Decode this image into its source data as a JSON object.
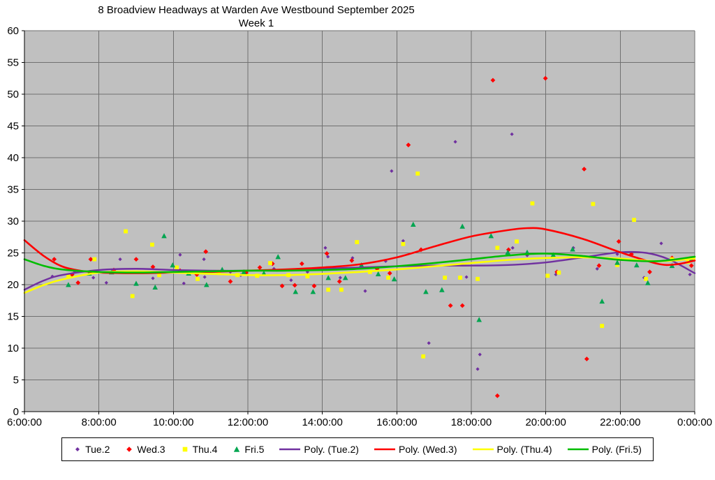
{
  "chart_data": {
    "type": "scatter",
    "title": "8 Broadview Headways at Warden Ave Westbound September 2025",
    "subtitle": "Week 1",
    "plot_bg": "#c0c0c0",
    "grid_color": "#707070",
    "axis_color": "#000000",
    "legend": {
      "position": "bottom",
      "border_color": "#000000",
      "bg": "#ffffff"
    },
    "x_axis": {
      "range_hours": [
        6,
        24
      ],
      "tick_hours": [
        6,
        8,
        10,
        12,
        14,
        16,
        18,
        20,
        22,
        24
      ],
      "tick_labels": [
        "6:00:00",
        "8:00:00",
        "10:00:00",
        "12:00:00",
        "14:00:00",
        "16:00:00",
        "18:00:00",
        "20:00:00",
        "22:00:00",
        "0:00:00"
      ]
    },
    "y_axis": {
      "range": [
        0,
        60
      ],
      "tick_values": [
        0,
        5,
        10,
        15,
        20,
        25,
        30,
        35,
        40,
        45,
        50,
        55,
        60
      ]
    },
    "series": [
      {
        "name": "Tue.2",
        "marker": "diamond",
        "marker_size": 2.6,
        "color": "#7030A0",
        "points": [
          [
            6.75,
            21.3
          ],
          [
            7.35,
            22.0
          ],
          [
            7.85,
            21.1
          ],
          [
            8.2,
            20.3
          ],
          [
            8.57,
            24.0
          ],
          [
            9.0,
            20.1
          ],
          [
            9.45,
            21.0
          ],
          [
            10.18,
            24.7
          ],
          [
            10.28,
            20.2
          ],
          [
            10.82,
            24.0
          ],
          [
            10.84,
            21.2
          ],
          [
            11.53,
            22.0
          ],
          [
            11.81,
            21.5
          ],
          [
            12.7,
            22.5
          ],
          [
            13.16,
            20.7
          ],
          [
            13.6,
            22.0
          ],
          [
            14.08,
            25.8
          ],
          [
            14.15,
            24.4
          ],
          [
            14.48,
            21.1
          ],
          [
            14.81,
            24.2
          ],
          [
            15.15,
            19.0
          ],
          [
            15.7,
            23.7
          ],
          [
            15.86,
            37.9
          ],
          [
            16.17,
            26.9
          ],
          [
            16.86,
            10.8
          ],
          [
            17.57,
            42.5
          ],
          [
            17.87,
            21.2
          ],
          [
            18.17,
            6.7
          ],
          [
            18.23,
            9.0
          ],
          [
            19.09,
            43.7
          ],
          [
            19.11,
            25.8
          ],
          [
            19.5,
            24.6
          ],
          [
            20.27,
            21.6
          ],
          [
            20.74,
            25.8
          ],
          [
            21.38,
            22.5
          ],
          [
            21.92,
            24.8
          ],
          [
            22.64,
            21.1
          ],
          [
            23.1,
            26.5
          ],
          [
            23.87,
            21.6
          ]
        ]
      },
      {
        "name": "Wed.3",
        "marker": "diamond",
        "marker_size": 3.4,
        "color": "#FF0000",
        "points": [
          [
            6.8,
            24.0
          ],
          [
            7.28,
            21.6
          ],
          [
            7.44,
            20.3
          ],
          [
            7.78,
            24.0
          ],
          [
            8.4,
            22.3
          ],
          [
            9.0,
            24.0
          ],
          [
            9.45,
            22.8
          ],
          [
            10.18,
            22.2
          ],
          [
            10.63,
            21.6
          ],
          [
            10.87,
            25.2
          ],
          [
            11.53,
            20.5
          ],
          [
            11.95,
            21.9
          ],
          [
            12.32,
            22.7
          ],
          [
            12.66,
            23.3
          ],
          [
            12.92,
            19.8
          ],
          [
            13.26,
            19.9
          ],
          [
            13.45,
            23.3
          ],
          [
            13.78,
            19.8
          ],
          [
            14.12,
            24.9
          ],
          [
            14.46,
            20.5
          ],
          [
            14.79,
            23.8
          ],
          [
            15.47,
            22.5
          ],
          [
            15.81,
            21.8
          ],
          [
            16.31,
            42.0
          ],
          [
            16.65,
            25.5
          ],
          [
            17.44,
            16.7
          ],
          [
            17.76,
            16.7
          ],
          [
            18.58,
            52.2
          ],
          [
            18.7,
            2.5
          ],
          [
            19.0,
            25.5
          ],
          [
            19.99,
            52.5
          ],
          [
            20.3,
            22.0
          ],
          [
            21.03,
            38.2
          ],
          [
            21.1,
            8.3
          ],
          [
            21.43,
            23.0
          ],
          [
            21.96,
            26.8
          ],
          [
            22.3,
            24.8
          ],
          [
            22.79,
            22.0
          ],
          [
            23.39,
            24.2
          ],
          [
            23.91,
            23.0
          ]
        ]
      },
      {
        "name": "Thu.4",
        "marker": "square",
        "marker_size": 2.9,
        "color": "#FFFF00",
        "points": [
          [
            7.18,
            21.4
          ],
          [
            7.88,
            24.0
          ],
          [
            8.72,
            28.4
          ],
          [
            8.9,
            18.2
          ],
          [
            9.43,
            26.3
          ],
          [
            9.62,
            21.5
          ],
          [
            10.09,
            22.7
          ],
          [
            10.65,
            20.9
          ],
          [
            11.21,
            22.0
          ],
          [
            11.72,
            21.5
          ],
          [
            12.25,
            21.4
          ],
          [
            12.6,
            23.4
          ],
          [
            13.09,
            21.5
          ],
          [
            13.6,
            21.3
          ],
          [
            14.16,
            19.2
          ],
          [
            14.51,
            19.2
          ],
          [
            14.93,
            26.7
          ],
          [
            15.28,
            22.0
          ],
          [
            15.77,
            21.1
          ],
          [
            16.17,
            26.4
          ],
          [
            16.56,
            37.5
          ],
          [
            16.71,
            8.7
          ],
          [
            17.29,
            21.1
          ],
          [
            17.7,
            21.1
          ],
          [
            18.17,
            20.9
          ],
          [
            18.7,
            25.8
          ],
          [
            19.22,
            26.8
          ],
          [
            19.64,
            32.8
          ],
          [
            20.05,
            21.4
          ],
          [
            20.35,
            21.9
          ],
          [
            21.27,
            32.7
          ],
          [
            21.51,
            13.5
          ],
          [
            21.92,
            23.1
          ],
          [
            22.37,
            30.2
          ],
          [
            22.69,
            20.9
          ],
          [
            23.39,
            24.0
          ],
          [
            23.82,
            23.6
          ]
        ]
      },
      {
        "name": "Fri.5",
        "marker": "triangle",
        "marker_size": 3.8,
        "color": "#00A550",
        "points": [
          [
            7.18,
            20.0
          ],
          [
            7.74,
            21.8
          ],
          [
            8.34,
            22.0
          ],
          [
            9.0,
            20.2
          ],
          [
            9.51,
            19.6
          ],
          [
            9.75,
            27.7
          ],
          [
            9.98,
            23.1
          ],
          [
            10.41,
            21.8
          ],
          [
            10.89,
            20.0
          ],
          [
            11.31,
            22.4
          ],
          [
            11.89,
            22.0
          ],
          [
            12.43,
            21.8
          ],
          [
            12.81,
            24.4
          ],
          [
            13.28,
            18.9
          ],
          [
            13.75,
            18.9
          ],
          [
            14.16,
            21.1
          ],
          [
            14.62,
            21.1
          ],
          [
            15.05,
            23.1
          ],
          [
            15.5,
            21.7
          ],
          [
            15.93,
            20.9
          ],
          [
            16.44,
            29.5
          ],
          [
            16.78,
            18.9
          ],
          [
            17.21,
            19.2
          ],
          [
            17.76,
            29.2
          ],
          [
            18.21,
            14.5
          ],
          [
            18.53,
            27.7
          ],
          [
            18.98,
            25.1
          ],
          [
            19.5,
            25.1
          ],
          [
            20.2,
            24.7
          ],
          [
            20.72,
            25.6
          ],
          [
            21.51,
            17.4
          ],
          [
            21.92,
            23.5
          ],
          [
            22.44,
            23.1
          ],
          [
            22.74,
            20.3
          ],
          [
            23.39,
            23.0
          ],
          [
            23.91,
            24.0
          ]
        ]
      }
    ],
    "trendlines": [
      {
        "name": "Poly. (Tue.2)",
        "color": "#7030A0",
        "width": 2.4,
        "points": [
          [
            6,
            19.2
          ],
          [
            6.5,
            20.6
          ],
          [
            7,
            21.5
          ],
          [
            8,
            22.3
          ],
          [
            9,
            22.5
          ],
          [
            10,
            22.3
          ],
          [
            11,
            22.2
          ],
          [
            12,
            22.2
          ],
          [
            13,
            22.3
          ],
          [
            14,
            22.5
          ],
          [
            15,
            22.7
          ],
          [
            16,
            22.9
          ],
          [
            17,
            23.0
          ],
          [
            18,
            23.0
          ],
          [
            19,
            23.1
          ],
          [
            20,
            23.5
          ],
          [
            21,
            24.3
          ],
          [
            22,
            25.1
          ],
          [
            22.7,
            25.0
          ],
          [
            23.3,
            24.0
          ],
          [
            24,
            21.8
          ]
        ]
      },
      {
        "name": "Poly. (Wed.3)",
        "color": "#FF0000",
        "width": 2.6,
        "points": [
          [
            6,
            27.0
          ],
          [
            6.5,
            24.6
          ],
          [
            7,
            22.9
          ],
          [
            7.5,
            22.2
          ],
          [
            8,
            21.9
          ],
          [
            9,
            21.8
          ],
          [
            10,
            21.9
          ],
          [
            11,
            22.0
          ],
          [
            12,
            22.2
          ],
          [
            13,
            22.4
          ],
          [
            14,
            22.7
          ],
          [
            15,
            23.2
          ],
          [
            16,
            24.3
          ],
          [
            17,
            26.0
          ],
          [
            18,
            27.6
          ],
          [
            19,
            28.6
          ],
          [
            19.5,
            28.9
          ],
          [
            20,
            28.7
          ],
          [
            21,
            27.2
          ],
          [
            22,
            25.1
          ],
          [
            23,
            23.3
          ],
          [
            23.5,
            23.2
          ],
          [
            24,
            23.8
          ]
        ]
      },
      {
        "name": "Poly. (Thu.4)",
        "color": "#FFFF00",
        "width": 2.6,
        "points": [
          [
            6,
            18.7
          ],
          [
            6.5,
            19.9
          ],
          [
            7,
            20.8
          ],
          [
            8,
            21.9
          ],
          [
            9,
            22.1
          ],
          [
            10,
            21.9
          ],
          [
            11,
            21.7
          ],
          [
            12,
            21.5
          ],
          [
            13,
            21.5
          ],
          [
            14,
            21.7
          ],
          [
            15,
            22.0
          ],
          [
            16,
            22.4
          ],
          [
            17,
            22.9
          ],
          [
            18,
            23.4
          ],
          [
            19,
            23.9
          ],
          [
            20,
            24.2
          ],
          [
            21,
            24.3
          ],
          [
            22,
            24.1
          ],
          [
            23,
            23.7
          ],
          [
            24,
            24.1
          ]
        ]
      },
      {
        "name": "Poly. (Fri.5)",
        "color": "#00BD00",
        "width": 2.6,
        "points": [
          [
            6,
            24.0
          ],
          [
            6.5,
            23.0
          ],
          [
            7,
            22.4
          ],
          [
            8,
            22.0
          ],
          [
            9,
            21.9
          ],
          [
            10,
            22.0
          ],
          [
            11,
            22.1
          ],
          [
            12,
            22.2
          ],
          [
            13,
            22.2
          ],
          [
            14,
            22.3
          ],
          [
            15,
            22.5
          ],
          [
            16,
            22.9
          ],
          [
            17,
            23.4
          ],
          [
            18,
            24.0
          ],
          [
            19,
            24.6
          ],
          [
            20,
            24.9
          ],
          [
            21,
            24.5
          ],
          [
            22,
            23.9
          ],
          [
            23,
            23.7
          ],
          [
            24,
            24.4
          ]
        ]
      }
    ]
  }
}
